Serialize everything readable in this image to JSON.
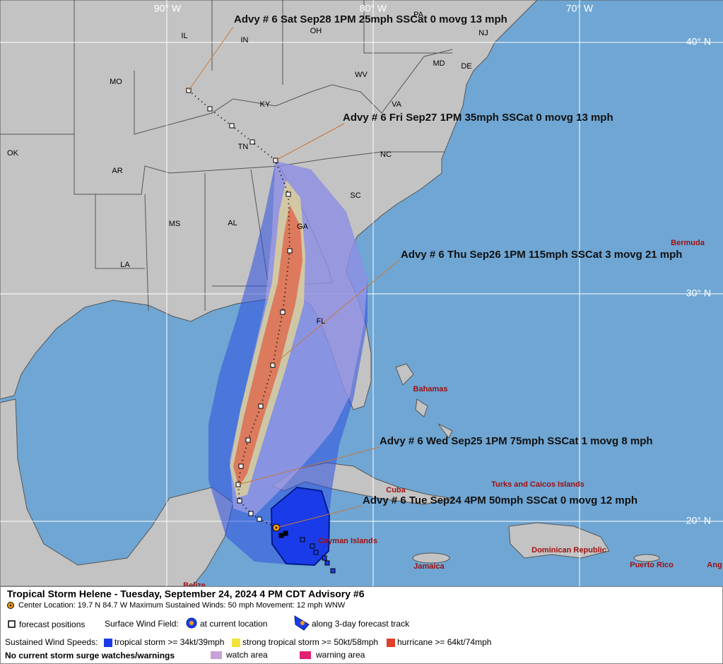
{
  "map": {
    "lon_labels": [
      "90° W",
      "80° W",
      "70° W"
    ],
    "lat_labels": [
      "40° N",
      "30° N",
      "20° N"
    ],
    "state_labels": [
      "IL",
      "IN",
      "OH",
      "PA",
      "NJ",
      "MO",
      "KY",
      "WV",
      "MD",
      "DE",
      "VA",
      "OK",
      "AR",
      "TN",
      "NC",
      "SC",
      "MS",
      "AL",
      "GA",
      "LA",
      "FL"
    ],
    "place_labels": [
      "Bermuda",
      "Bahamas",
      "Cuba",
      "Turks and Caicos Islands",
      "Cayman Islands",
      "Dominican Republic",
      "Jamaica",
      "Puerto Rico",
      "Ang",
      "Belize"
    ],
    "advisories": [
      "Advy # 6 Sat Sep28 1PM  25mph SSCat 0 movg 13 mph",
      "Advy # 6 Fri Sep27 1PM  35mph SSCat 0 movg 13 mph",
      "Advy # 6 Thu Sep26 1PM  115mph SSCat 3 movg 21 mph",
      "Advy # 6 Wed Sep25 1PM  75mph SSCat 1 movg 8 mph",
      "Advy # 6 Tue Sep24 4PM  50mph SSCat 0 movg 12 mph"
    ]
  },
  "legend": {
    "title": "Tropical Storm Helene  -  Tuesday, September 24, 2024  4 PM CDT   Advisory #6",
    "center": "Center Location: 19.7 N  84.7 W   Maximum Sustained Winds: 50 mph  Movement: 12 mph WNW",
    "forecast_positions": "forecast positions",
    "wind_field": "Surface Wind Field:",
    "at_current": "at current location",
    "along_track": "along 3-day forecast track",
    "speeds_label": "Sustained Wind Speeds:",
    "tropical_storm": "tropical storm >= 34kt/39mph",
    "strong_tropical_storm": "strong tropical storm >= 50kt/58mph",
    "hurricane": "hurricane >= 64kt/74mph",
    "surge": "No current storm surge watches/warnings",
    "watch": "watch area",
    "warning": "warning area"
  }
}
